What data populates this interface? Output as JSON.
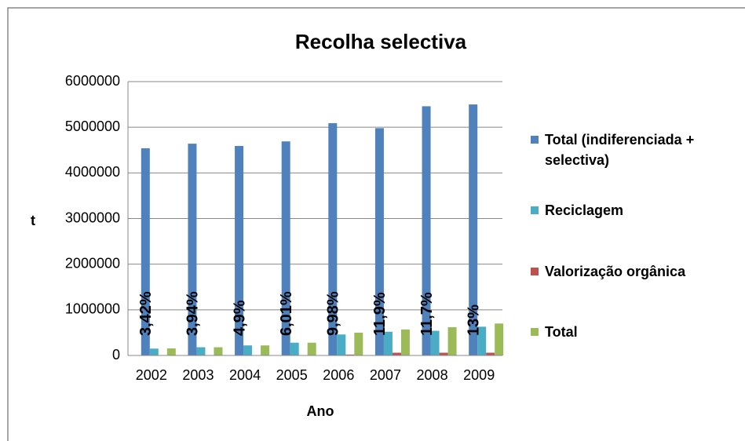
{
  "chart_data": {
    "type": "bar",
    "title": "Recolha selectiva",
    "x_label": "Ano",
    "y_label": "t",
    "categories": [
      "2002",
      "2003",
      "2004",
      "2005",
      "2006",
      "2007",
      "2008",
      "2009"
    ],
    "series": [
      {
        "name": "Total (indiferenciada + selectiva)",
        "color": "#4f81bd",
        "values": [
          4540000,
          4640000,
          4590000,
          4690000,
          5090000,
          4980000,
          5460000,
          5500000
        ]
      },
      {
        "name": "Reciclagem",
        "color": "#4bacc6",
        "values": [
          150000,
          180000,
          220000,
          280000,
          460000,
          520000,
          540000,
          630000
        ]
      },
      {
        "name": "Valorização orgânica",
        "color": "#c0504d",
        "values": [
          5000,
          5000,
          5000,
          5000,
          20000,
          60000,
          60000,
          60000
        ]
      },
      {
        "name": "Total",
        "color": "#9bbb59",
        "values": [
          155000,
          180000,
          220000,
          280000,
          500000,
          570000,
          620000,
          700000
        ]
      }
    ],
    "annotations": [
      "3,42%",
      "3,94%",
      "4,9%",
      "6,01%",
      "9,98%",
      "11,9%",
      "11,7%",
      "13%"
    ],
    "ylim": [
      0,
      6000000
    ],
    "yticks": [
      0,
      1000000,
      2000000,
      3000000,
      4000000,
      5000000,
      6000000
    ],
    "grid": true,
    "legend": "right"
  }
}
